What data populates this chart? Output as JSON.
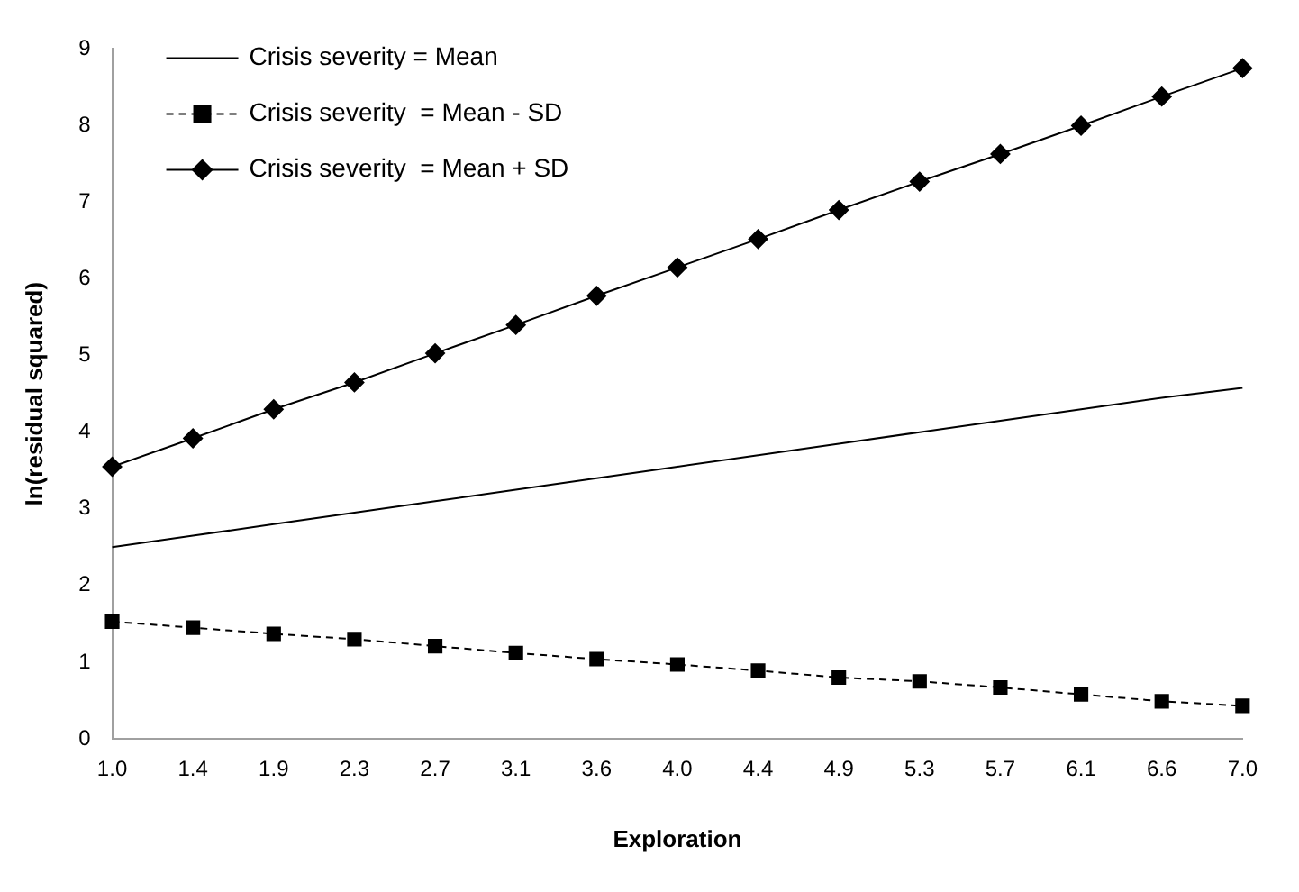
{
  "chart_data": {
    "type": "line",
    "xlabel": "Exploration",
    "ylabel": "ln(residual squared)",
    "categories": [
      "1.0",
      "1.4",
      "1.9",
      "2.3",
      "2.7",
      "3.1",
      "3.6",
      "4.0",
      "4.4",
      "4.9",
      "5.3",
      "5.7",
      "6.1",
      "6.6",
      "7.0"
    ],
    "series": [
      {
        "name": "Crisis severity = Mean",
        "color": "#000000",
        "marker": "none",
        "line_style": "solid",
        "values": [
          2.5,
          2.65,
          2.8,
          2.95,
          3.1,
          3.25,
          3.4,
          3.55,
          3.7,
          3.85,
          4.0,
          4.15,
          4.3,
          4.45,
          4.58
        ]
      },
      {
        "name": "Crisis severity  = Mean - SD",
        "color": "#000000",
        "marker": "square",
        "line_style": "dashed",
        "values": [
          1.53,
          1.45,
          1.37,
          1.3,
          1.21,
          1.12,
          1.04,
          0.97,
          0.89,
          0.8,
          0.75,
          0.67,
          0.58,
          0.49,
          0.43
        ]
      },
      {
        "name": "Crisis severity  = Mean + SD",
        "color": "#000000",
        "marker": "diamond",
        "line_style": "solid",
        "values": [
          3.55,
          3.92,
          4.3,
          4.65,
          5.03,
          5.4,
          5.78,
          6.15,
          6.52,
          6.9,
          7.27,
          7.63,
          8.0,
          8.38,
          8.75
        ]
      }
    ],
    "ylim": [
      0,
      9
    ],
    "yticks": [
      0,
      1,
      2,
      3,
      4,
      5,
      6,
      7,
      8,
      9
    ],
    "grid": false,
    "legend": "top left"
  }
}
